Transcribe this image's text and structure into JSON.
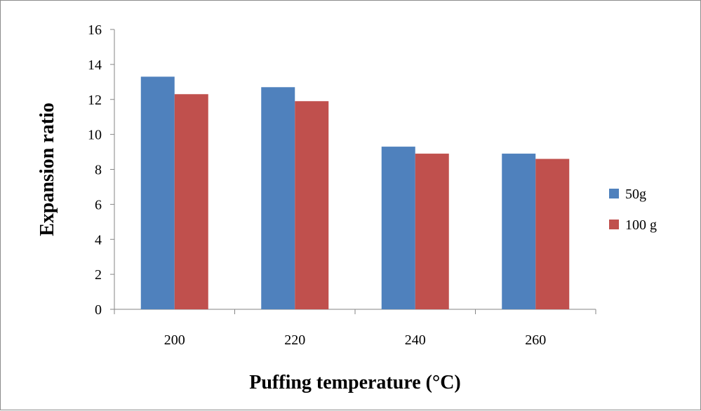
{
  "chart_data": {
    "type": "bar",
    "categories": [
      "200",
      "220",
      "240",
      "260"
    ],
    "series": [
      {
        "name": "50g",
        "color": "#4f81bd",
        "values": [
          13.3,
          12.7,
          9.3,
          8.9
        ]
      },
      {
        "name": "100 g",
        "color": "#c0504d",
        "values": [
          12.3,
          11.9,
          8.9,
          8.6
        ]
      }
    ],
    "xlabel": "Puffing temperature (°C)",
    "ylabel": "Expansion ratio",
    "ylim": [
      0,
      16
    ],
    "yticks": [
      "0",
      "2",
      "4",
      "6",
      "8",
      "10",
      "12",
      "14",
      "16"
    ],
    "grid": false,
    "legend_position": "right"
  }
}
